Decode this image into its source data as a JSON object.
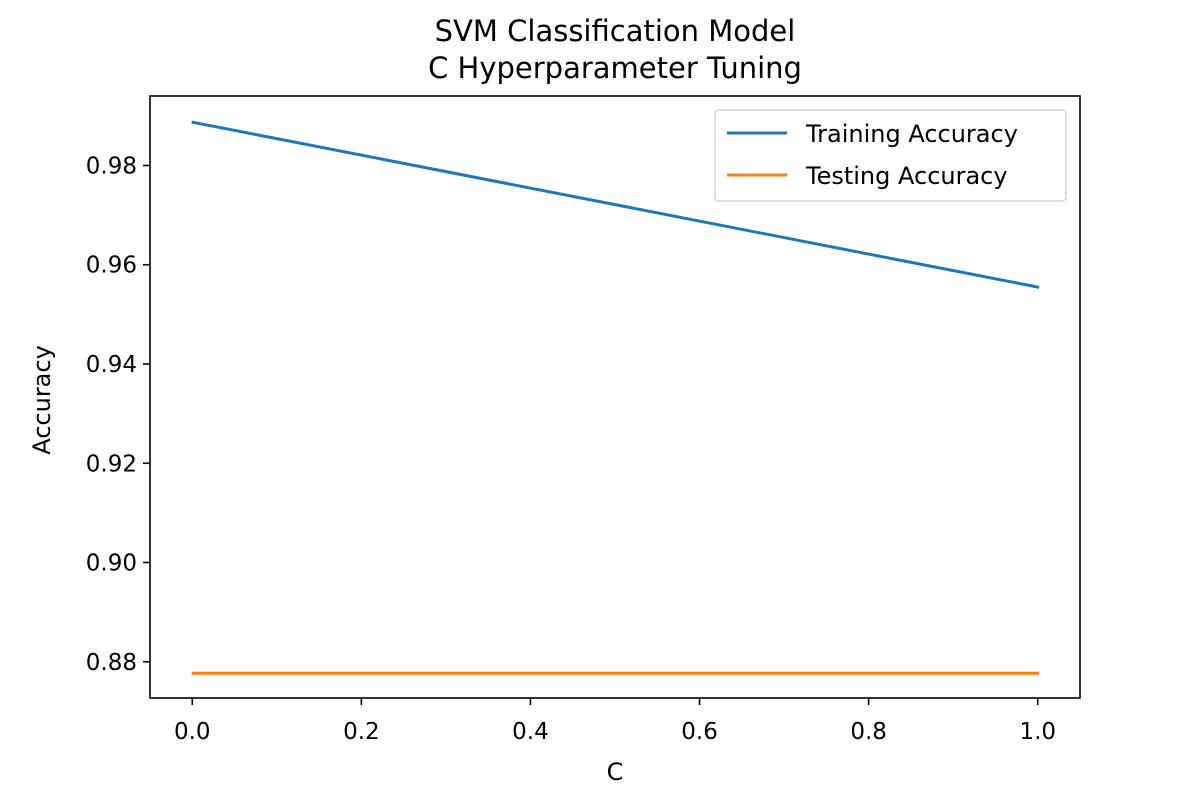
{
  "chart_data": {
    "type": "line",
    "title": [
      "SVM Classification Model",
      "C Hyperparameter Tuning"
    ],
    "xlabel": "C",
    "ylabel": "Accuracy",
    "x": [
      0.001,
      1.0
    ],
    "xlim": [
      -0.05,
      1.05
    ],
    "ylim": [
      0.8727,
      0.994
    ],
    "xticks": [
      0.0,
      0.2,
      0.4,
      0.6,
      0.8,
      1.0
    ],
    "xtick_labels": [
      "0.0",
      "0.2",
      "0.4",
      "0.6",
      "0.8",
      "1.0"
    ],
    "yticks": [
      0.88,
      0.9,
      0.92,
      0.94,
      0.96,
      0.98
    ],
    "ytick_labels": [
      "0.88",
      "0.90",
      "0.92",
      "0.94",
      "0.96",
      "0.98"
    ],
    "grid": false,
    "legend_position": "top-right",
    "series": [
      {
        "name": "Training Accuracy",
        "values": [
          0.9887,
          0.9555
        ],
        "color": "#1f77b4"
      },
      {
        "name": "Testing Accuracy",
        "values": [
          0.8777,
          0.8777
        ],
        "color": "#ff7f0e"
      }
    ]
  }
}
